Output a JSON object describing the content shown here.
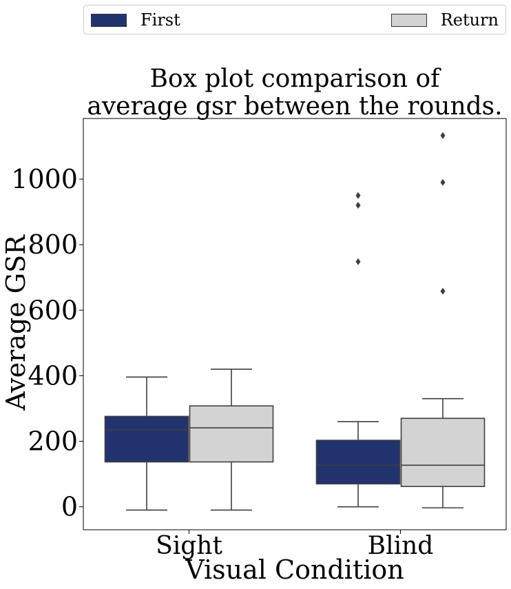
{
  "chart_data": {
    "type": "box",
    "title": [
      "Box plot comparison of",
      "average gsr between the rounds."
    ],
    "xlabel": "Visual Condition",
    "ylabel": "Average GSR",
    "categories": [
      "Sight",
      "Blind"
    ],
    "ylim": [
      -70,
      1185
    ],
    "yticks": [
      0,
      200,
      400,
      600,
      800,
      1000
    ],
    "legend_position": "top, spanning full width above plot",
    "series": [
      {
        "name": "First",
        "color": "#22346f",
        "boxes": [
          {
            "category": "Sight",
            "whisker_low": -10,
            "q1": 137,
            "median": 235,
            "q3": 276,
            "whisker_high": 396,
            "outliers": []
          },
          {
            "category": "Blind",
            "whisker_low": 0,
            "q1": 70,
            "median": 127,
            "q3": 203,
            "whisker_high": 260,
            "outliers": [
              748,
              920,
              950
            ]
          }
        ]
      },
      {
        "name": "Return",
        "color": "#d3d3d3",
        "boxes": [
          {
            "category": "Sight",
            "whisker_low": -10,
            "q1": 137,
            "median": 241,
            "q3": 308,
            "whisker_high": 420,
            "outliers": []
          },
          {
            "category": "Blind",
            "whisker_low": -3,
            "q1": 62,
            "median": 127,
            "q3": 270,
            "whisker_high": 330,
            "outliers": [
              658,
              990,
              1133
            ]
          }
        ]
      }
    ]
  }
}
